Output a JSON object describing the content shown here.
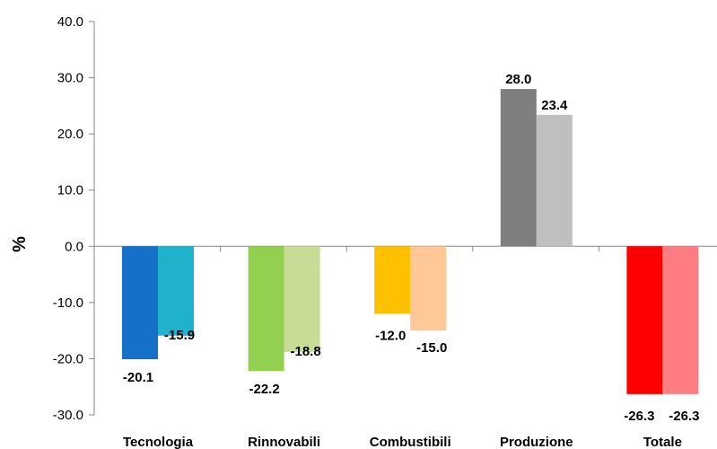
{
  "chart_data": {
    "type": "bar",
    "ylabel": "%",
    "ylim": [
      -30,
      40
    ],
    "yticks": [
      "40.0",
      "30.0",
      "20.0",
      "10.0",
      "0.0",
      "-10.0",
      "-20.0",
      "-30.0"
    ],
    "categories": [
      "Tecnologia",
      "Rinnovabili",
      "Combustibili",
      "Produzione",
      "Totale"
    ],
    "grid": false,
    "legend": "none",
    "series": [
      {
        "values": [
          -20.1,
          -22.2,
          -12.0,
          28.0,
          -26.3
        ],
        "labels": [
          "-20.1",
          "-22.2",
          "-12.0",
          "28.0",
          "-26.3"
        ]
      },
      {
        "values": [
          -15.9,
          -18.8,
          -15.0,
          23.4,
          -26.3
        ],
        "labels": [
          "-15.9",
          "-18.8",
          "-15.0",
          "23.4",
          "-26.3"
        ]
      }
    ],
    "colors": [
      [
        "#1570C8",
        "#20B2CC"
      ],
      [
        "#92D050",
        "#C8DC96"
      ],
      [
        "#FFC000",
        "#FFC896"
      ],
      [
        "#7F7F7F",
        "#BFBFBF"
      ],
      [
        "#FF0000",
        "#FF7C80"
      ]
    ]
  }
}
